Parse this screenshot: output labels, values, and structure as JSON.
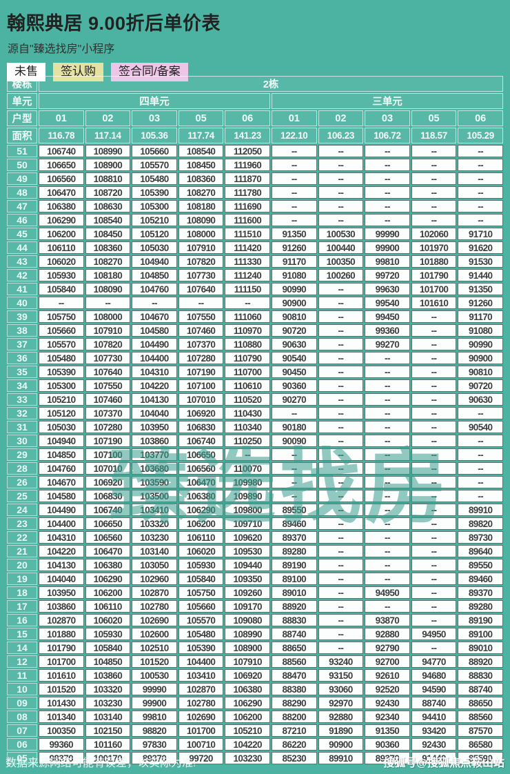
{
  "title": "翰熙典居 9.00折后单价表",
  "subtitle": "源自\"臻选找房\"小程序",
  "colors": {
    "background_teal": "#4cb3a2",
    "unsold_bg": "#ffffff",
    "subscribed_bg": "#e5e1a2",
    "contracted_bg": "#eec4e8",
    "cell_bg": "#fcfdfd",
    "watermark_teal": "#389e8e"
  },
  "legend": {
    "items": [
      {
        "label": "未售",
        "bg": "#ffffff"
      },
      {
        "label": "签认购",
        "bg": "#e5e1a2"
      },
      {
        "label": "签合同/备案",
        "bg": "#eec4e8"
      }
    ]
  },
  "watermark": "臻选找房",
  "table": {
    "building_label": "楼栋",
    "building": "2栋",
    "unit_label": "单元",
    "units": [
      "四单元",
      "三单元"
    ],
    "type_label": "户型",
    "types": [
      "01",
      "02",
      "03",
      "05",
      "06",
      "01",
      "02",
      "03",
      "05",
      "06"
    ],
    "area_label": "面积",
    "areas": [
      "116.78",
      "117.14",
      "105.36",
      "117.74",
      "141.23",
      "122.10",
      "106.23",
      "106.72",
      "118.57",
      "105.29"
    ],
    "rows": [
      {
        "floor": "51",
        "values": [
          "106740",
          "108990",
          "105660",
          "108540",
          "112050",
          "--",
          "--",
          "--",
          "--",
          "--"
        ]
      },
      {
        "floor": "50",
        "values": [
          "106650",
          "108900",
          "105570",
          "108450",
          "111960",
          "--",
          "--",
          "--",
          "--",
          "--"
        ]
      },
      {
        "floor": "49",
        "values": [
          "106560",
          "108810",
          "105480",
          "108360",
          "111870",
          "--",
          "--",
          "--",
          "--",
          "--"
        ]
      },
      {
        "floor": "48",
        "values": [
          "106470",
          "108720",
          "105390",
          "108270",
          "111780",
          "--",
          "--",
          "--",
          "--",
          "--"
        ]
      },
      {
        "floor": "47",
        "values": [
          "106380",
          "108630",
          "105300",
          "108180",
          "111690",
          "--",
          "--",
          "--",
          "--",
          "--"
        ]
      },
      {
        "floor": "46",
        "values": [
          "106290",
          "108540",
          "105210",
          "108090",
          "111600",
          "--",
          "--",
          "--",
          "--",
          "--"
        ]
      },
      {
        "floor": "45",
        "values": [
          "106200",
          "108450",
          "105120",
          "108000",
          "111510",
          "91350",
          "100530",
          "99990",
          "102060",
          "91710"
        ]
      },
      {
        "floor": "44",
        "values": [
          "106110",
          "108360",
          "105030",
          "107910",
          "111420",
          "91260",
          "100440",
          "99900",
          "101970",
          "91620"
        ]
      },
      {
        "floor": "43",
        "values": [
          "106020",
          "108270",
          "104940",
          "107820",
          "111330",
          "91170",
          "100350",
          "99810",
          "101880",
          "91530"
        ]
      },
      {
        "floor": "42",
        "values": [
          "105930",
          "108180",
          "104850",
          "107730",
          "111240",
          "91080",
          "100260",
          "99720",
          "101790",
          "91440"
        ]
      },
      {
        "floor": "41",
        "values": [
          "105840",
          "108090",
          "104760",
          "107640",
          "111150",
          "90990",
          "--",
          "99630",
          "101700",
          "91350"
        ]
      },
      {
        "floor": "40",
        "values": [
          "--",
          "--",
          "--",
          "--",
          "--",
          "90900",
          "--",
          "99540",
          "101610",
          "91260"
        ]
      },
      {
        "floor": "39",
        "values": [
          "105750",
          "108000",
          "104670",
          "107550",
          "111060",
          "90810",
          "--",
          "99450",
          "--",
          "91170"
        ]
      },
      {
        "floor": "38",
        "values": [
          "105660",
          "107910",
          "104580",
          "107460",
          "110970",
          "90720",
          "--",
          "99360",
          "--",
          "91080"
        ]
      },
      {
        "floor": "37",
        "values": [
          "105570",
          "107820",
          "104490",
          "107370",
          "110880",
          "90630",
          "--",
          "99270",
          "--",
          "90990"
        ]
      },
      {
        "floor": "36",
        "values": [
          "105480",
          "107730",
          "104400",
          "107280",
          "110790",
          "90540",
          "--",
          "--",
          "--",
          "90900"
        ]
      },
      {
        "floor": "35",
        "values": [
          "105390",
          "107640",
          "104310",
          "107190",
          "110700",
          "90450",
          "--",
          "--",
          "--",
          "90810"
        ]
      },
      {
        "floor": "34",
        "values": [
          "105300",
          "107550",
          "104220",
          "107100",
          "110610",
          "90360",
          "--",
          "--",
          "--",
          "90720"
        ]
      },
      {
        "floor": "33",
        "values": [
          "105210",
          "107460",
          "104130",
          "107010",
          "110520",
          "90270",
          "--",
          "--",
          "--",
          "90630"
        ]
      },
      {
        "floor": "32",
        "values": [
          "105120",
          "107370",
          "104040",
          "106920",
          "110430",
          "--",
          "--",
          "--",
          "--",
          "--"
        ]
      },
      {
        "floor": "31",
        "values": [
          "105030",
          "107280",
          "103950",
          "106830",
          "110340",
          "90180",
          "--",
          "--",
          "--",
          "90540"
        ]
      },
      {
        "floor": "30",
        "values": [
          "104940",
          "107190",
          "103860",
          "106740",
          "110250",
          "90090",
          "--",
          "--",
          "--",
          "--"
        ]
      },
      {
        "floor": "29",
        "values": [
          "104850",
          "107100",
          "103770",
          "106650",
          "--",
          "--",
          "--",
          "--",
          "--",
          "--"
        ]
      },
      {
        "floor": "28",
        "values": [
          "104760",
          "107010",
          "103680",
          "106560",
          "110070",
          "--",
          "--",
          "--",
          "--",
          "--"
        ]
      },
      {
        "floor": "26",
        "values": [
          "104670",
          "106920",
          "103590",
          "106470",
          "109980",
          "--",
          "--",
          "--",
          "--",
          "--"
        ]
      },
      {
        "floor": "25",
        "values": [
          "104580",
          "106830",
          "103500",
          "106380",
          "109890",
          "--",
          "--",
          "--",
          "--",
          "--"
        ]
      },
      {
        "floor": "24",
        "values": [
          "104490",
          "106740",
          "103410",
          "106290",
          "109800",
          "89550",
          "--",
          "--",
          "--",
          "89910"
        ]
      },
      {
        "floor": "23",
        "values": [
          "104400",
          "106650",
          "103320",
          "106200",
          "109710",
          "89460",
          "--",
          "--",
          "--",
          "89820"
        ]
      },
      {
        "floor": "22",
        "values": [
          "104310",
          "106560",
          "103230",
          "106110",
          "109620",
          "89370",
          "--",
          "--",
          "--",
          "89730"
        ]
      },
      {
        "floor": "21",
        "values": [
          "104220",
          "106470",
          "103140",
          "106020",
          "109530",
          "89280",
          "--",
          "--",
          "--",
          "89640"
        ]
      },
      {
        "floor": "20",
        "values": [
          "104130",
          "106380",
          "103050",
          "105930",
          "109440",
          "89190",
          "--",
          "--",
          "--",
          "89550"
        ]
      },
      {
        "floor": "19",
        "values": [
          "104040",
          "106290",
          "102960",
          "105840",
          "109350",
          "89100",
          "--",
          "--",
          "--",
          "89460"
        ]
      },
      {
        "floor": "18",
        "values": [
          "103950",
          "106200",
          "102870",
          "105750",
          "109260",
          "89010",
          "--",
          "94950",
          "--",
          "89370"
        ]
      },
      {
        "floor": "17",
        "values": [
          "103860",
          "106110",
          "102780",
          "105660",
          "109170",
          "88920",
          "--",
          "--",
          "--",
          "89280"
        ]
      },
      {
        "floor": "16",
        "values": [
          "102870",
          "106020",
          "102690",
          "105570",
          "109080",
          "88830",
          "--",
          "93870",
          "--",
          "89190"
        ]
      },
      {
        "floor": "15",
        "values": [
          "101880",
          "105930",
          "102600",
          "105480",
          "108990",
          "88740",
          "--",
          "92880",
          "94950",
          "89100"
        ]
      },
      {
        "floor": "14",
        "values": [
          "101790",
          "105840",
          "102510",
          "105390",
          "108900",
          "88650",
          "--",
          "92790",
          "--",
          "89010"
        ]
      },
      {
        "floor": "12",
        "values": [
          "101700",
          "104850",
          "101520",
          "104400",
          "107910",
          "88560",
          "93240",
          "92700",
          "94770",
          "88920"
        ]
      },
      {
        "floor": "11",
        "values": [
          "101610",
          "103860",
          "100530",
          "103410",
          "106920",
          "88470",
          "93150",
          "92610",
          "94680",
          "88830"
        ]
      },
      {
        "floor": "10",
        "values": [
          "101520",
          "103320",
          "99990",
          "102870",
          "106380",
          "88380",
          "93060",
          "92520",
          "94590",
          "88740"
        ]
      },
      {
        "floor": "09",
        "values": [
          "101430",
          "103230",
          "99900",
          "102780",
          "106290",
          "88290",
          "92970",
          "92430",
          "88740",
          "88650"
        ]
      },
      {
        "floor": "08",
        "values": [
          "101340",
          "103140",
          "99810",
          "102690",
          "106200",
          "88200",
          "92880",
          "92340",
          "94410",
          "88560"
        ]
      },
      {
        "floor": "07",
        "values": [
          "100350",
          "102150",
          "98820",
          "101700",
          "105210",
          "87210",
          "91890",
          "91350",
          "93420",
          "87570"
        ]
      },
      {
        "floor": "06",
        "values": [
          "99360",
          "101160",
          "97830",
          "100710",
          "104220",
          "86220",
          "90900",
          "90360",
          "92430",
          "86580"
        ]
      },
      {
        "floor": "05",
        "values": [
          "98370",
          "100170",
          "89370",
          "99720",
          "103230",
          "85230",
          "89910",
          "89370",
          "91440",
          "85590"
        ]
      }
    ]
  },
  "footer": {
    "left": "数据来源网络可能有误差，以实际为准!",
    "right": "搜狐号@搜狐焦点鞍山站"
  }
}
